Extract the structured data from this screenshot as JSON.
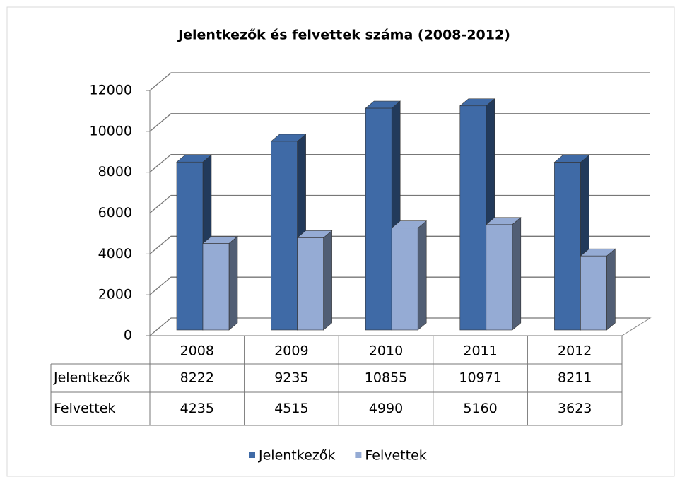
{
  "chart_data": {
    "type": "bar3d",
    "title": "Jelentkezők és felvettek száma (2008-2012)",
    "categories": [
      "2008",
      "2009",
      "2010",
      "2011",
      "2012"
    ],
    "series": [
      {
        "name": "Jelentkezők",
        "color": "#3f6aa6",
        "values": [
          8222,
          9235,
          10855,
          10971,
          8211
        ]
      },
      {
        "name": "Felvettek",
        "color": "#95abd4",
        "values": [
          4235,
          4515,
          4990,
          5160,
          3623
        ]
      }
    ],
    "ylim": [
      0,
      12000
    ],
    "yticks": [
      0,
      2000,
      4000,
      6000,
      8000,
      10000,
      12000
    ],
    "grid": true,
    "legend": "bottom",
    "data_table": true
  }
}
